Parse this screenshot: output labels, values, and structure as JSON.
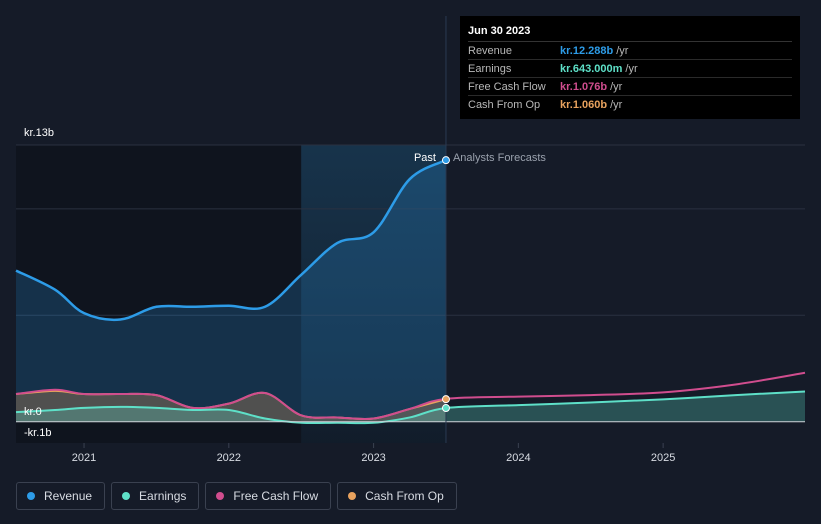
{
  "chart_data": {
    "type": "area",
    "y_axis": {
      "top_label": "kr.13b",
      "zero_label": "kr.0",
      "bottom_label": "-kr.1b",
      "ylim": [
        -1,
        13
      ]
    },
    "x_axis": {
      "ticks": [
        "2021",
        "2022",
        "2023",
        "2024",
        "2025"
      ],
      "xlim": [
        2020.53,
        2025.98
      ]
    },
    "past_label": "Past",
    "forecast_label": "Analysts Forecasts",
    "highlight_range": [
      2022.5,
      2023.5
    ],
    "divider_x": 2023.5,
    "series": [
      {
        "name": "Revenue",
        "color": "#2d9ce8",
        "filled": true,
        "x": [
          2020.53,
          2020.8,
          2021.0,
          2021.25,
          2021.5,
          2021.75,
          2022.0,
          2022.25,
          2022.5,
          2022.75,
          2023.0,
          2023.25,
          2023.5
        ],
        "values": [
          7.1,
          6.2,
          5.1,
          4.8,
          5.4,
          5.4,
          5.45,
          5.4,
          6.9,
          8.4,
          8.9,
          11.4,
          12.288
        ]
      },
      {
        "name": "Earnings",
        "color": "#5ee0c8",
        "filled": true,
        "x": [
          2020.53,
          2020.8,
          2021.0,
          2021.25,
          2021.5,
          2021.75,
          2022.0,
          2022.25,
          2022.5,
          2022.75,
          2023.0,
          2023.25,
          2023.5,
          2024.0,
          2024.5,
          2025.0,
          2025.5,
          2025.98
        ],
        "values": [
          0.45,
          0.55,
          0.65,
          0.7,
          0.65,
          0.55,
          0.55,
          0.15,
          -0.05,
          -0.05,
          -0.05,
          0.2,
          0.643,
          0.78,
          0.9,
          1.05,
          1.25,
          1.42
        ]
      },
      {
        "name": "Free Cash Flow",
        "color": "#d04d8e",
        "filled": false,
        "x": [
          2020.53,
          2020.8,
          2021.0,
          2021.25,
          2021.5,
          2021.75,
          2022.0,
          2022.25,
          2022.5,
          2022.75,
          2023.0,
          2023.25,
          2023.5,
          2024.0,
          2024.5,
          2025.0,
          2025.5,
          2025.98
        ],
        "values": [
          1.3,
          1.5,
          1.3,
          1.3,
          1.25,
          0.65,
          0.85,
          1.35,
          0.3,
          0.2,
          0.15,
          0.6,
          1.076,
          1.18,
          1.25,
          1.38,
          1.75,
          2.3
        ]
      },
      {
        "name": "Cash From Op",
        "color": "#e8a25e",
        "filled": true,
        "x": [
          2020.53,
          2020.8,
          2021.0,
          2021.25,
          2021.5,
          2021.75,
          2022.0,
          2022.25,
          2022.5,
          2022.75,
          2023.0,
          2023.25,
          2023.5
        ],
        "values": [
          1.3,
          1.45,
          1.3,
          1.3,
          1.25,
          0.65,
          0.85,
          1.35,
          0.3,
          0.2,
          0.15,
          0.6,
          1.06
        ]
      }
    ]
  },
  "tooltip": {
    "date": "Jun 30 2023",
    "rows": [
      {
        "label": "Revenue",
        "value": "kr.12.288b",
        "unit": "/yr",
        "color": "#2d9ce8"
      },
      {
        "label": "Earnings",
        "value": "kr.643.000m",
        "unit": "/yr",
        "color": "#5ee0c8"
      },
      {
        "label": "Free Cash Flow",
        "value": "kr.1.076b",
        "unit": "/yr",
        "color": "#d04d8e"
      },
      {
        "label": "Cash From Op",
        "value": "kr.1.060b",
        "unit": "/yr",
        "color": "#e8a25e"
      }
    ]
  },
  "legend": [
    {
      "label": "Revenue",
      "color": "#2d9ce8"
    },
    {
      "label": "Earnings",
      "color": "#5ee0c8"
    },
    {
      "label": "Free Cash Flow",
      "color": "#d04d8e"
    },
    {
      "label": "Cash From Op",
      "color": "#e8a25e"
    }
  ]
}
